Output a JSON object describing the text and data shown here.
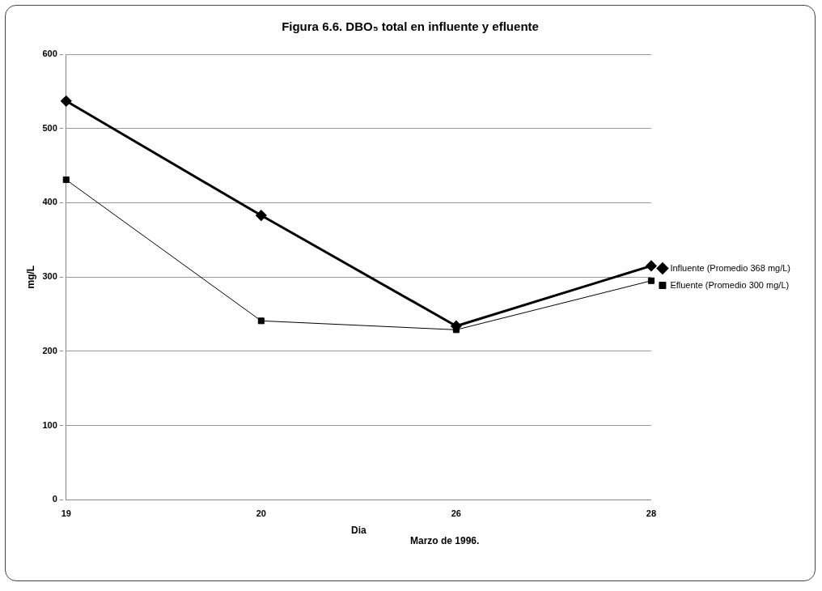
{
  "chart_data": {
    "type": "line",
    "title": "Figura 6.6. DBO₅ total en influente y efluente",
    "xlabel": "Dia",
    "ylabel": "mg/L",
    "annotations": [
      "Marzo de 1996."
    ],
    "categories": [
      "19",
      "20",
      "26",
      "28"
    ],
    "series": [
      {
        "name": "Influente (Promedio 368 mg/L)",
        "color": "#000000",
        "marker": "diamond",
        "values": [
          537,
          383,
          234,
          315
        ]
      },
      {
        "name": "Efluente (Promedio 300 mg/L)",
        "color": "#000000",
        "marker": "square",
        "values": [
          431,
          241,
          229,
          295
        ]
      }
    ],
    "ylim": [
      0,
      600
    ],
    "yticks": [
      0,
      100,
      200,
      300,
      400,
      500,
      600
    ],
    "grid": "y",
    "legend": "right"
  }
}
